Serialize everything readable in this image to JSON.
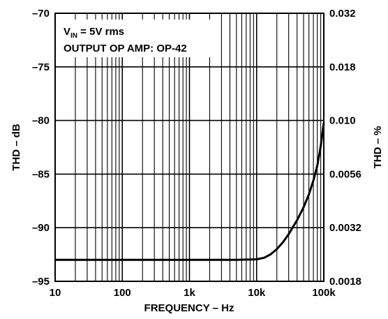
{
  "chart_data": {
    "type": "line",
    "title": "",
    "xlabel": "FREQUENCY – Hz",
    "ylabel": "THD – dB",
    "y2label": "THD – %",
    "xscale": "log",
    "xlim": [
      10,
      100000
    ],
    "ylim": [
      -95,
      -70
    ],
    "grid": true,
    "x_tick_labels": [
      "10",
      "100",
      "1k",
      "10k",
      "100k"
    ],
    "y_tick_labels": [
      "–95",
      "–90",
      "–85",
      "–80",
      "–75",
      "–70"
    ],
    "y2_tick_labels": [
      "0.0018",
      "0.0032",
      "0.0056",
      "0.010",
      "0.018",
      "0.032"
    ],
    "annotations": {
      "line1_main": "V",
      "line1_sub": "IN",
      "line1_rest": " = 5V rms",
      "line2": "OUTPUT OP AMP: OP-42"
    },
    "series": [
      {
        "x": [
          10,
          20,
          50,
          100,
          200,
          500,
          1000,
          2000,
          5000,
          10000,
          13000,
          16000,
          20000,
          25000,
          30000,
          40000,
          50000,
          60000,
          70000,
          80000,
          90000,
          100000
        ],
        "y": [
          -93,
          -93,
          -93,
          -93,
          -93,
          -93,
          -93,
          -93,
          -93,
          -92.95,
          -92.8,
          -92.5,
          -92,
          -91.3,
          -90.6,
          -89.3,
          -88.1,
          -86.9,
          -85.6,
          -84.2,
          -82.4,
          -80.2
        ]
      }
    ]
  }
}
